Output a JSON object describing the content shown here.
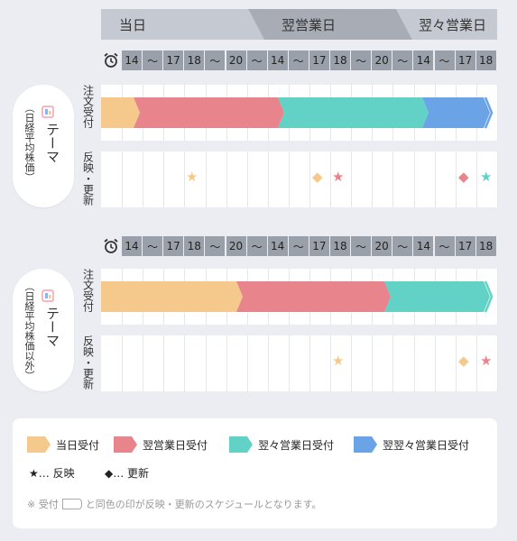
{
  "header": {
    "days": [
      "当日",
      "翌営業日",
      "翌々営業日"
    ]
  },
  "timeline": {
    "hours": [
      "14",
      "〜",
      "17",
      "18",
      "〜",
      "20",
      "〜",
      "14",
      "〜",
      "17",
      "18",
      "〜",
      "20",
      "〜",
      "14",
      "〜",
      "17",
      "18"
    ]
  },
  "sections": [
    {
      "theme_label": "テーマ",
      "theme_sub": "（日経平均株価）",
      "order_label": "注文受付",
      "reflect_label": "反映・更新"
    },
    {
      "theme_label": "テーマ",
      "theme_sub": "（日経平均株価以外）",
      "order_label": "注文受付",
      "reflect_label": "反映・更新"
    }
  ],
  "legend": {
    "same_day": "当日受付",
    "next_day": "翌営業日受付",
    "day_after": "翌々営業日受付",
    "third_day": "翌翌々営業日受付",
    "reflect": "★… 反映",
    "update": "◆… 更新",
    "note_prefix": "※ 受付",
    "note_suffix": "と同色の印が反映・更新のスケジュールとなります。"
  },
  "colors": {
    "same_day": "#f5c98b",
    "next_day": "#e8848b",
    "day_after": "#62d1c6",
    "third_day": "#6aa3e6",
    "header_dark": "#9aa0aa",
    "header_light": "#c5c9d1"
  }
}
